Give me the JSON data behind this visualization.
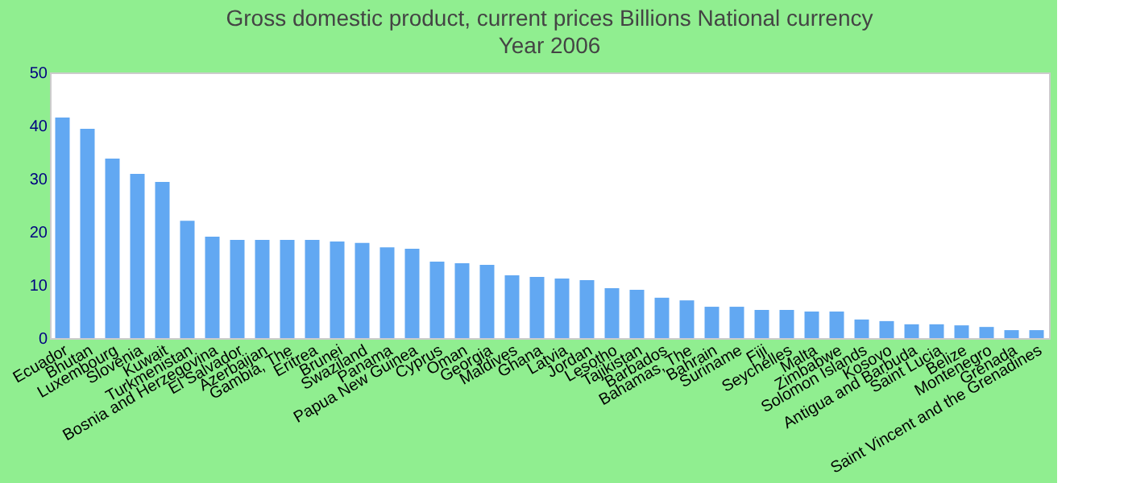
{
  "chart_data": {
    "type": "bar",
    "title": "Gross domestic product, current prices Billions National currency",
    "subtitle": "Year 2006",
    "categories": [
      "Ecuador",
      "Bhutan",
      "Luxembourg",
      "Slovenia",
      "Kuwait",
      "Turkmenistan",
      "Bosnia and Herzegovina",
      "El Salvador",
      "Azerbaijan",
      "Gambia, The",
      "Eritrea",
      "Brunei",
      "Swaziland",
      "Panama",
      "Papua New Guinea",
      "Cyprus",
      "Oman",
      "Georgia",
      "Maldives",
      "Ghana",
      "Latvia",
      "Jordan",
      "Lesotho",
      "Tajikistan",
      "Barbados",
      "Bahamas, The",
      "Bahrain",
      "Suriname",
      "Fiji",
      "Seychelles",
      "Malta",
      "Zimbabwe",
      "Solomon Islands",
      "Kosovo",
      "Antigua and Barbuda",
      "Saint Lucia",
      "Belize",
      "Montenegro",
      "Grenada",
      "Saint Vincent and the Grenadines"
    ],
    "values": [
      41.5,
      39.4,
      33.8,
      30.9,
      29.4,
      22.1,
      19.1,
      18.5,
      18.5,
      18.5,
      18.5,
      18.2,
      17.9,
      17.1,
      16.8,
      14.4,
      14.1,
      13.8,
      11.8,
      11.5,
      11.2,
      10.9,
      9.4,
      9.1,
      7.6,
      7.1,
      5.9,
      5.9,
      5.3,
      5.3,
      5.0,
      5.0,
      3.5,
      3.2,
      2.6,
      2.6,
      2.4,
      2.1,
      1.5,
      1.5
    ],
    "color": "#62a8f2",
    "ylim": [
      0,
      50
    ],
    "yticks": [
      0,
      10,
      20,
      30,
      40,
      50
    ],
    "grid": false
  }
}
